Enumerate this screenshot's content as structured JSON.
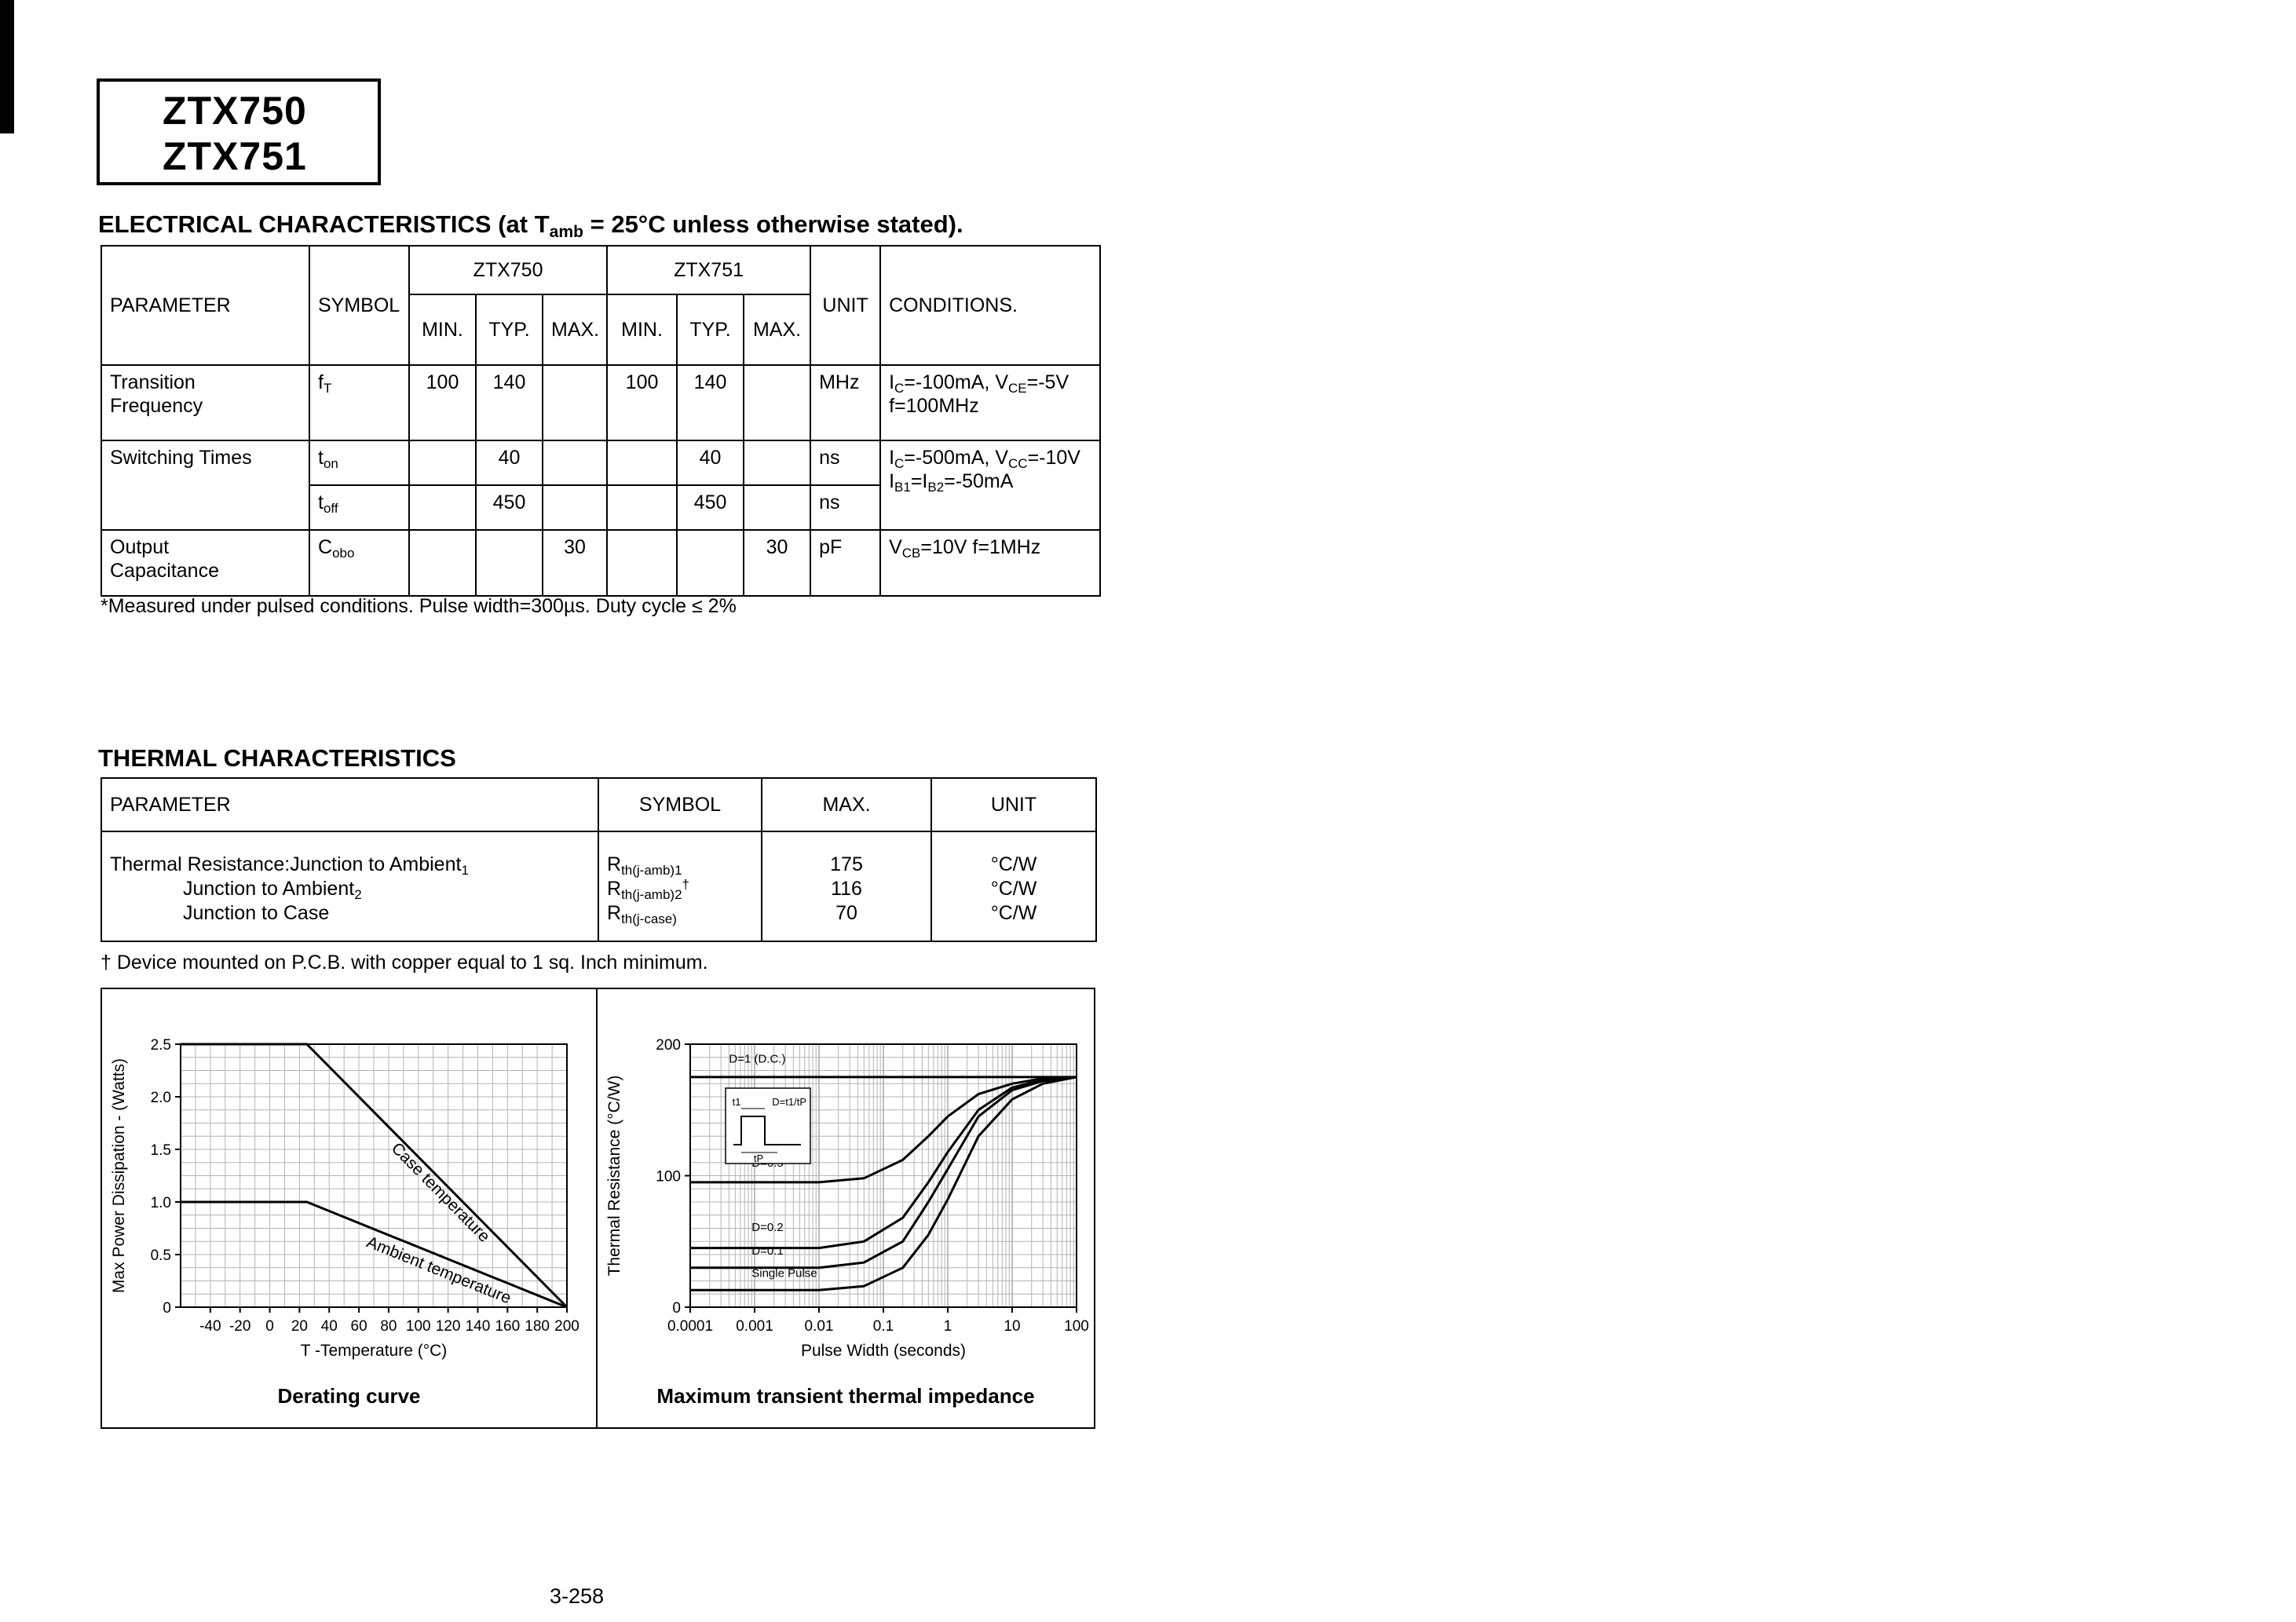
{
  "page": {
    "part_numbers": [
      "ZTX750",
      "ZTX751"
    ],
    "page_number": "3-258"
  },
  "electrical": {
    "heading": "ELECTRICAL CHARACTERISTICS (at T~amb~ = 25°C unless otherwise stated).",
    "note": "*Measured under pulsed conditions. Pulse width=300µs. Duty cycle ≤ 2%",
    "header": {
      "parameter": "PARAMETER",
      "symbol": "SYMBOL",
      "ztx750": "ZTX750",
      "ztx751": "ZTX751",
      "min": "MIN.",
      "typ": "TYP.",
      "max": "MAX.",
      "unit": "UNIT",
      "conditions": "CONDITIONS."
    },
    "rows": {
      "transition_frequency": {
        "parameter": "Transition Frequency",
        "symbol": "f~T~",
        "ztx750_min": "100",
        "ztx750_typ": "140",
        "ztx751_min": "100",
        "ztx751_typ": "140",
        "unit": "MHz",
        "conditions_line1": "I~C~=-100mA, V~CE~=-5V",
        "conditions_line2": "f=100MHz"
      },
      "switching_on": {
        "parameter": "Switching Times",
        "symbol": "t~on~",
        "ztx750_typ": "40",
        "ztx751_typ": "40",
        "unit": "ns",
        "conditions_line1": "I~C~=-500mA, V~CC~=-10V",
        "conditions_line2": "I~B1~=I~B2~=-50mA"
      },
      "switching_off": {
        "symbol": "t~off~",
        "ztx750_typ": "450",
        "ztx751_typ": "450",
        "unit": "ns"
      },
      "output_capacitance": {
        "parameter": "Output Capacitance",
        "symbol": "C~obo~",
        "ztx750_max": "30",
        "ztx751_max": "30",
        "unit": "pF",
        "conditions_line1": "V~CB~=10V f=1MHz"
      }
    }
  },
  "thermal": {
    "heading": "THERMAL CHARACTERISTICS",
    "note": "† Device mounted on P.C.B. with copper equal to 1 sq. Inch minimum.",
    "header": {
      "parameter": "PARAMETER",
      "symbol": "SYMBOL",
      "max": "MAX.",
      "unit": "UNIT"
    },
    "rows": [
      {
        "parameter": "Thermal Resistance:Junction to Ambient~1~",
        "symbol": "R~th(j-amb)1~",
        "max": "175",
        "unit": "°C/W"
      },
      {
        "parameter": "Junction to Ambient~2~",
        "symbol": "R~th(j-amb)2~^†^",
        "max": "116",
        "unit": "°C/W"
      },
      {
        "parameter": "Junction to Case",
        "symbol": "R~th(j-case)~",
        "max": "70",
        "unit": "°C/W"
      }
    ]
  },
  "chart_data": [
    {
      "type": "line",
      "title": "Derating curve",
      "xlabel": "T -Temperature (°C)",
      "ylabel": "Max Power Dissipation -  (Watts)",
      "xscale": "linear",
      "xlim": [
        -60,
        200
      ],
      "ylim": [
        0,
        2.5
      ],
      "xticks": [
        "-40",
        "-20",
        "0",
        "20",
        "40",
        "60",
        "80",
        "100",
        "120",
        "140",
        "160",
        "180",
        "200"
      ],
      "yticks": [
        "0",
        "0.5",
        "1.0",
        "1.5",
        "2.0",
        "2.5"
      ],
      "grid": {
        "x_step": 10,
        "y_step": 0.125
      },
      "legend": "off",
      "series": [
        {
          "name": "Case temperature",
          "points": [
            [
              -60,
              2.5
            ],
            [
              25,
              2.5
            ],
            [
              200,
              0
            ]
          ],
          "label_segment": 1
        },
        {
          "name": "Ambient temperature",
          "points": [
            [
              -60,
              1.0
            ],
            [
              25,
              1.0
            ],
            [
              200,
              0
            ]
          ],
          "label_segment": 1
        }
      ]
    },
    {
      "type": "line",
      "title": "Maximum transient thermal impedance",
      "xlabel": "Pulse Width (seconds)",
      "ylabel": "Thermal Resistance (°C/W)",
      "xscale": "log",
      "xlim": [
        0.0001,
        100
      ],
      "ylim": [
        0,
        200
      ],
      "xticks": [
        "0.0001",
        "0.001",
        "0.01",
        "0.1",
        "1",
        "10",
        "100"
      ],
      "yticks": [
        "0",
        "100",
        "200"
      ],
      "grid": {
        "y_step": 10
      },
      "legend": "off",
      "series": [
        {
          "name": "D=1 (D.C.)",
          "points": [
            [
              0.0001,
              175
            ],
            [
              100,
              175
            ]
          ],
          "label_pos": [
            0.0004,
            186
          ]
        },
        {
          "name": "D=0.5",
          "points": [
            [
              0.0001,
              95
            ],
            [
              0.01,
              95
            ],
            [
              0.05,
              98
            ],
            [
              0.2,
              112
            ],
            [
              0.5,
              130
            ],
            [
              1,
              145
            ],
            [
              3,
              162
            ],
            [
              10,
              170
            ],
            [
              30,
              174
            ],
            [
              100,
              175
            ]
          ],
          "label_pos": [
            0.0009,
            107
          ]
        },
        {
          "name": "D=0.2",
          "points": [
            [
              0.0001,
              45
            ],
            [
              0.01,
              45
            ],
            [
              0.05,
              50
            ],
            [
              0.2,
              68
            ],
            [
              0.5,
              95
            ],
            [
              1,
              118
            ],
            [
              3,
              150
            ],
            [
              10,
              167
            ],
            [
              30,
              173
            ],
            [
              100,
              175
            ]
          ],
          "label_pos": [
            0.0009,
            58
          ]
        },
        {
          "name": "D=0.1",
          "points": [
            [
              0.0001,
              30
            ],
            [
              0.01,
              30
            ],
            [
              0.05,
              34
            ],
            [
              0.2,
              50
            ],
            [
              0.5,
              80
            ],
            [
              1,
              105
            ],
            [
              3,
              145
            ],
            [
              10,
              165
            ],
            [
              30,
              172
            ],
            [
              100,
              175
            ]
          ],
          "label_pos": [
            0.0009,
            40
          ]
        },
        {
          "name": "Single Pulse",
          "points": [
            [
              0.0001,
              13
            ],
            [
              0.01,
              13
            ],
            [
              0.05,
              16
            ],
            [
              0.2,
              30
            ],
            [
              0.5,
              55
            ],
            [
              1,
              82
            ],
            [
              3,
              130
            ],
            [
              10,
              158
            ],
            [
              30,
              170
            ],
            [
              100,
              175
            ]
          ],
          "label_pos": [
            0.0009,
            23
          ]
        }
      ],
      "inset": {
        "d_label": "D=t1/tP",
        "t1_label": "t1",
        "tp_label": "tP"
      }
    }
  ]
}
